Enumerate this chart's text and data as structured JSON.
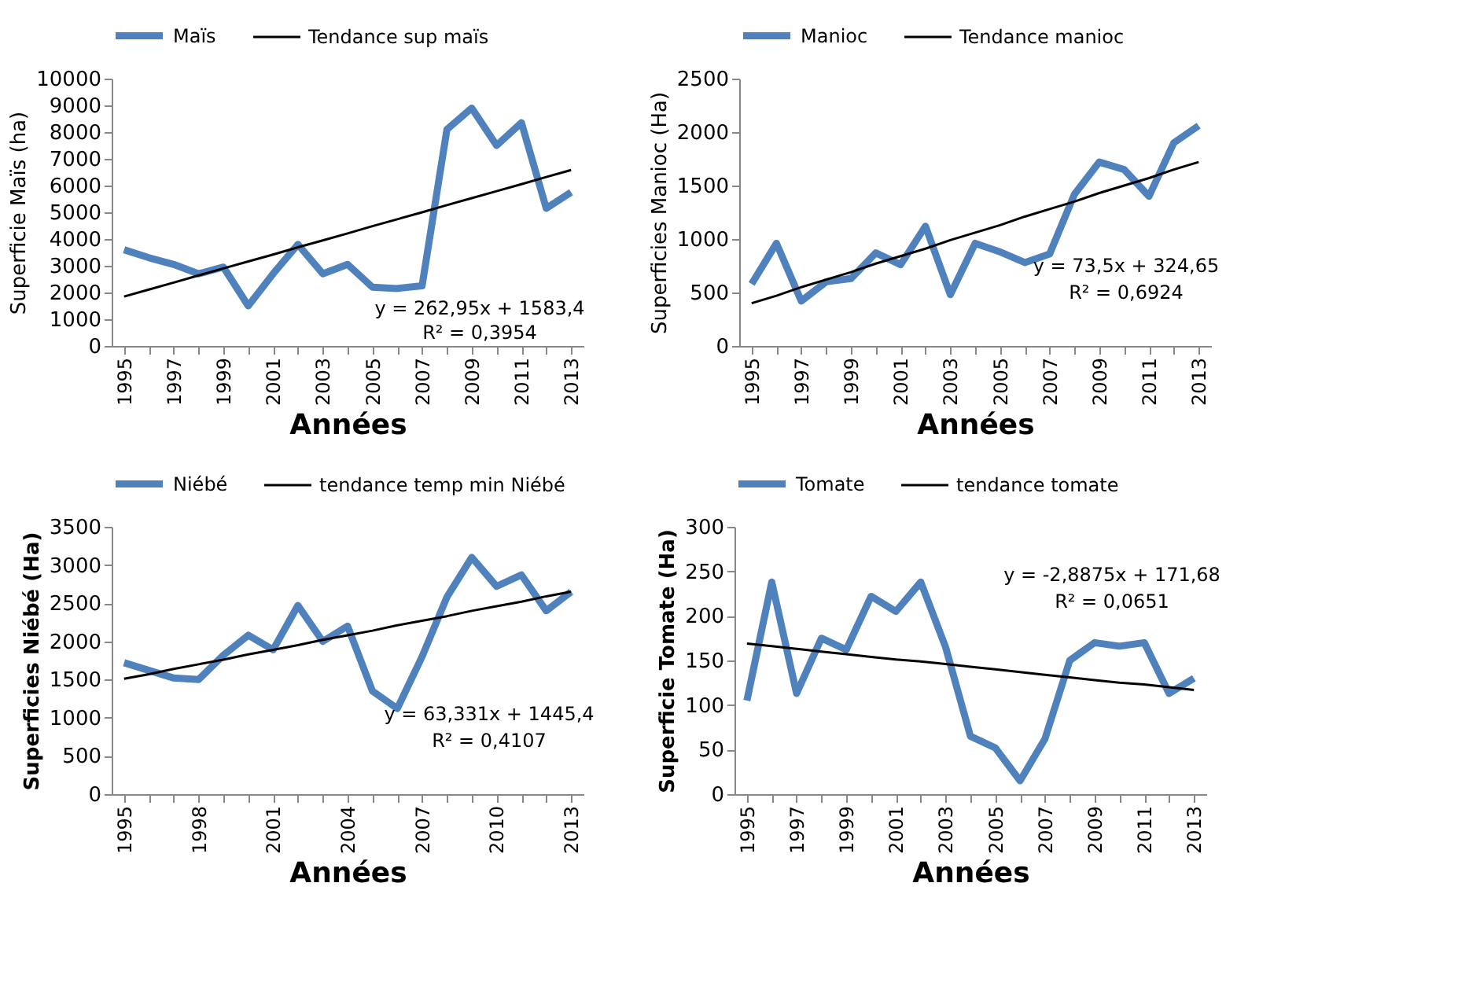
{
  "chart_data": [
    {
      "type": "line",
      "xlabel": "Années",
      "ylabel": "Superficie Maïs (ha)",
      "categories": [
        "1995",
        null,
        "1997",
        null,
        "1999",
        null,
        "2001",
        null,
        "2003",
        null,
        "2005",
        null,
        "2007",
        null,
        "2009",
        null,
        "2011",
        null,
        "2013"
      ],
      "ylim": [
        0,
        10000
      ],
      "yticks": [
        0,
        1000,
        2000,
        3000,
        4000,
        5000,
        6000,
        7000,
        8000,
        9000,
        10000
      ],
      "grid": false,
      "legend": "top",
      "marker": "none",
      "series": [
        {
          "name": "Maïs",
          "color": "#4f81bd",
          "values": [
            3600,
            3300,
            3050,
            2700,
            2950,
            1500,
            2700,
            3800,
            2700,
            3050,
            2200,
            2150,
            2250,
            8100,
            8900,
            7500,
            8350,
            5150,
            5750
          ]
        },
        {
          "name": "Tendance sup maïs",
          "color": "#000000",
          "values": [
            1850,
            2110,
            2370,
            2640,
            2900,
            3160,
            3420,
            3690,
            3950,
            4210,
            4480,
            4740,
            5000,
            5270,
            5530,
            5790,
            6050,
            6320,
            6580
          ]
        }
      ],
      "annotations": [
        "y = 262,95x + 1583,4",
        "R² = 0,3954"
      ]
    },
    {
      "type": "line",
      "xlabel": "Années",
      "ylabel": "Superficies Manioc (Ha)",
      "categories": [
        "1995",
        null,
        "1997",
        null,
        "1999",
        null,
        "2001",
        null,
        "2003",
        null,
        "2005",
        null,
        "2007",
        null,
        "2009",
        null,
        "2011",
        null,
        "2013"
      ],
      "ylim": [
        0,
        2500
      ],
      "yticks": [
        0,
        500,
        1000,
        1500,
        2000,
        2500
      ],
      "grid": false,
      "legend": "top",
      "marker": "none",
      "series": [
        {
          "name": "Manioc",
          "color": "#4f81bd",
          "values": [
            580,
            960,
            420,
            600,
            630,
            870,
            760,
            1120,
            480,
            960,
            880,
            780,
            860,
            1420,
            1720,
            1650,
            1400,
            1900,
            2060
          ]
        },
        {
          "name": "Tendance manioc",
          "color": "#000000",
          "values": [
            400,
            470,
            550,
            620,
            690,
            770,
            840,
            910,
            990,
            1060,
            1130,
            1210,
            1280,
            1350,
            1430,
            1500,
            1570,
            1650,
            1720
          ]
        }
      ],
      "annotations": [
        "y = 73,5x + 324,65",
        "R² = 0,6924"
      ]
    },
    {
      "type": "line",
      "xlabel": "Années",
      "ylabel": "Superficies Niébé (Ha)",
      "categories": [
        "1995",
        null,
        null,
        "1998",
        null,
        null,
        "2001",
        null,
        null,
        "2004",
        null,
        null,
        "2007",
        null,
        null,
        "2010",
        null,
        null,
        "2013"
      ],
      "ylim": [
        0,
        3500
      ],
      "yticks": [
        0,
        500,
        1000,
        1500,
        2000,
        2500,
        3000,
        3500
      ],
      "grid": false,
      "legend": "top",
      "marker": "none",
      "series": [
        {
          "name": "Niébé",
          "color": "#4f81bd",
          "values": [
            1720,
            1620,
            1520,
            1500,
            1820,
            2080,
            1890,
            2470,
            2000,
            2200,
            1350,
            1120,
            1800,
            2580,
            3100,
            2720,
            2870,
            2400,
            2650
          ]
        },
        {
          "name": "tendance temp min Niébé",
          "color": "#000000",
          "values": [
            1510,
            1570,
            1640,
            1700,
            1760,
            1830,
            1890,
            1950,
            2020,
            2080,
            2140,
            2210,
            2270,
            2330,
            2400,
            2460,
            2520,
            2590,
            2650
          ]
        }
      ],
      "annotations": [
        "y = 63,331x + 1445,4",
        "R² = 0,4107"
      ]
    },
    {
      "type": "line",
      "xlabel": "Années",
      "ylabel": "Superficie Tomate (Ha)",
      "categories": [
        "1995",
        null,
        "1997",
        null,
        "1999",
        null,
        "2001",
        null,
        "2003",
        null,
        "2005",
        null,
        "2007",
        null,
        "2009",
        null,
        "2011",
        null,
        "2013"
      ],
      "ylim": [
        0,
        300
      ],
      "yticks": [
        0,
        50,
        100,
        150,
        200,
        250,
        300
      ],
      "grid": false,
      "legend": "top",
      "marker": "none",
      "series": [
        {
          "name": "Tomate",
          "color": "#4f81bd",
          "values": [
            105,
            238,
            113,
            175,
            162,
            222,
            205,
            238,
            165,
            65,
            52,
            15,
            62,
            150,
            170,
            166,
            170,
            113,
            130
          ]
        },
        {
          "name": "tendance tomate",
          "color": "#000000",
          "values": [
            169,
            166,
            163,
            160,
            157,
            154,
            151,
            149,
            146,
            143,
            140,
            137,
            134,
            131,
            128,
            125,
            123,
            120,
            117
          ]
        }
      ],
      "annotations": [
        "y = -2,8875x + 171,68",
        "R² = 0,0651"
      ]
    }
  ]
}
